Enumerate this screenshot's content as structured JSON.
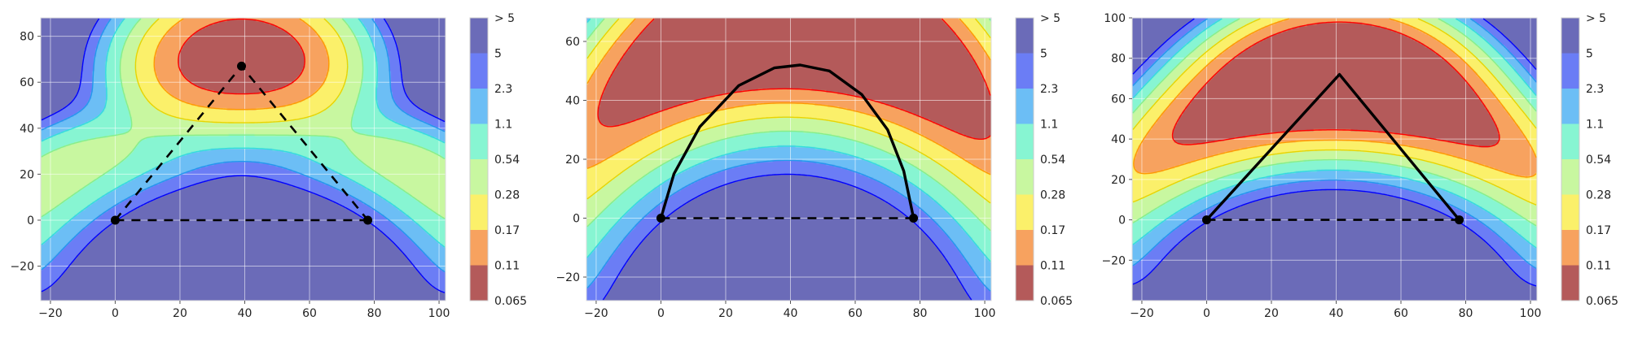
{
  "chart_data": [
    {
      "type": "contour",
      "panel": "left",
      "xlim": [
        -23,
        102
      ],
      "ylim": [
        -35,
        88
      ],
      "xticks": [
        -20,
        0,
        20,
        40,
        60,
        80,
        100
      ],
      "yticks": [
        -20,
        0,
        20,
        40,
        60,
        80
      ],
      "grid": true,
      "points": [
        {
          "x": 0,
          "y": 0
        },
        {
          "x": 78,
          "y": 0
        },
        {
          "x": 39,
          "y": 67
        }
      ],
      "paths": [
        {
          "style": "dashed",
          "points": [
            [
              0,
              0
            ],
            [
              78,
              0
            ]
          ]
        },
        {
          "style": "dashed",
          "points": [
            [
              0,
              0
            ],
            [
              39,
              67
            ],
            [
              78,
              0
            ]
          ]
        }
      ],
      "field": {
        "base": 0.07,
        "center_weight": 5,
        "sigma": 20,
        "sources": [
          [
            0,
            0
          ],
          [
            78,
            0
          ],
          [
            39,
            67
          ]
        ]
      },
      "colorbar": {
        "labels": [
          "> 5",
          "5",
          "2.3",
          "1.1",
          "0.54",
          "0.28",
          "0.17",
          "0.11",
          "0.065"
        ]
      }
    },
    {
      "type": "contour",
      "panel": "middle",
      "xlim": [
        -23,
        102
      ],
      "ylim": [
        -28,
        68
      ],
      "xticks": [
        -20,
        0,
        20,
        40,
        60,
        80,
        100
      ],
      "yticks": [
        -20,
        0,
        20,
        40,
        60
      ],
      "grid": true,
      "points": [
        {
          "x": 0,
          "y": 0
        },
        {
          "x": 78,
          "y": 0
        }
      ],
      "paths": [
        {
          "style": "dashed",
          "points": [
            [
              0,
              0
            ],
            [
              78,
              0
            ]
          ]
        },
        {
          "style": "solid",
          "points": [
            [
              0,
              0
            ],
            [
              4,
              15
            ],
            [
              12,
              31
            ],
            [
              24,
              45
            ],
            [
              35,
              51
            ],
            [
              43,
              52
            ],
            [
              52,
              50
            ],
            [
              62,
              42
            ],
            [
              70,
              30
            ],
            [
              75,
              16
            ],
            [
              78,
              0
            ]
          ]
        }
      ],
      "field": {
        "base": 0.07,
        "center_weight": 5,
        "sigma": 20,
        "sources": [
          [
            0,
            0
          ],
          [
            4,
            15
          ],
          [
            12,
            31
          ],
          [
            24,
            45
          ],
          [
            35,
            51
          ],
          [
            43,
            52
          ],
          [
            52,
            50
          ],
          [
            62,
            42
          ],
          [
            70,
            30
          ],
          [
            75,
            16
          ],
          [
            78,
            0
          ]
        ]
      },
      "colorbar": {
        "labels": [
          "> 5",
          "5",
          "2.3",
          "1.1",
          "0.54",
          "0.28",
          "0.17",
          "0.11",
          "0.065"
        ]
      }
    },
    {
      "type": "contour",
      "panel": "right",
      "xlim": [
        -23,
        102
      ],
      "ylim": [
        -40,
        100
      ],
      "xticks": [
        -20,
        0,
        20,
        40,
        60,
        80,
        100
      ],
      "yticks": [
        -20,
        0,
        20,
        40,
        60,
        80,
        100
      ],
      "grid": true,
      "points": [
        {
          "x": 0,
          "y": 0
        },
        {
          "x": 78,
          "y": 0
        }
      ],
      "paths": [
        {
          "style": "dashed",
          "points": [
            [
              0,
              0
            ],
            [
              78,
              0
            ]
          ]
        },
        {
          "style": "solid",
          "points": [
            [
              0,
              0
            ],
            [
              41,
              72
            ],
            [
              78,
              0
            ]
          ]
        }
      ],
      "field": {
        "base": 0.07,
        "center_weight": 5,
        "sigma": 20,
        "sources": [
          [
            0,
            0
          ],
          [
            10,
            18
          ],
          [
            20,
            35
          ],
          [
            30,
            53
          ],
          [
            41,
            72
          ],
          [
            50,
            54
          ],
          [
            60,
            35
          ],
          [
            70,
            16
          ],
          [
            78,
            0
          ]
        ]
      },
      "colorbar": {
        "labels": [
          "> 5",
          "5",
          "2.3",
          "1.1",
          "0.54",
          "0.28",
          "0.17",
          "0.11",
          "0.065"
        ]
      }
    }
  ],
  "colors": {
    "levels": [
      "#b45a5a",
      "#f7a25f",
      "#fbf06a",
      "#c8f7a0",
      "#87f5d2",
      "#6cbef5",
      "#6b7df5",
      "#6b6bb8"
    ],
    "lines": [
      "#ff0000",
      "#ff9900",
      "#e8d400",
      "#88ee88",
      "#33dddd",
      "#2299ee",
      "#0000ff"
    ],
    "marker": "#000000"
  }
}
